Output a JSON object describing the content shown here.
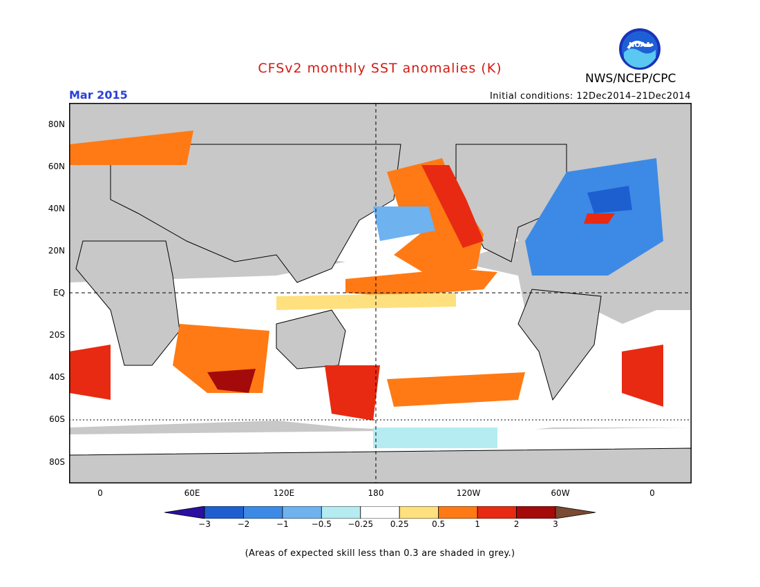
{
  "title": "CFSv2 monthly SST anomalies (K)",
  "valid_month": "Mar 2015",
  "initial_conditions": "Initial conditions: 12Dec2014–21Dec2014",
  "agency": "NWS/NCEP/CPC",
  "logo_text": "NOAA",
  "map": {
    "lat_labels": [
      "80N",
      "60N",
      "40N",
      "20N",
      "EQ",
      "20S",
      "40S",
      "60S",
      "80S"
    ],
    "lon_labels": [
      "0",
      "60E",
      "120E",
      "180",
      "120W",
      "60W",
      "0"
    ],
    "land_color": "#c8c8c8",
    "ocean_neutral_color": "#ffffff",
    "grey_skill_mask": "expected skill less than 0.3"
  },
  "colorbar": {
    "labels": [
      "−3",
      "−2",
      "−1",
      "−0.5",
      "−0.25",
      "0.25",
      "0.5",
      "1",
      "2",
      "3"
    ],
    "colors": [
      "#2a0fa0",
      "#1e5fd0",
      "#3c8ae6",
      "#6fb2f0",
      "#b4ecf2",
      "#ffffff",
      "#ffe07e",
      "#ff7a14",
      "#e82a12",
      "#a50a0a",
      "#7a4a32"
    ]
  },
  "footnote": "(Areas of expected skill less than 0.3 are shaded in grey.)"
}
